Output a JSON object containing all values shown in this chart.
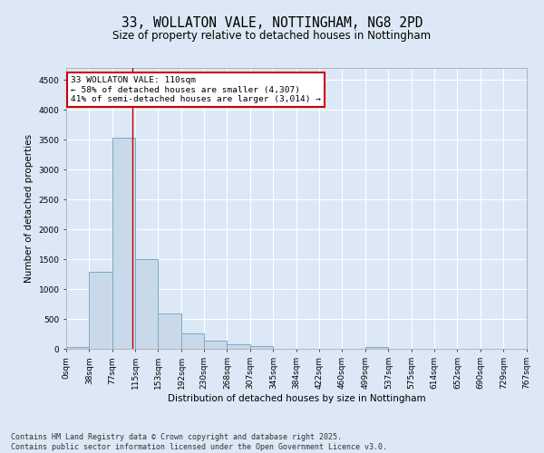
{
  "title_line1": "33, WOLLATON VALE, NOTTINGHAM, NG8 2PD",
  "title_line2": "Size of property relative to detached houses in Nottingham",
  "xlabel": "Distribution of detached houses by size in Nottingham",
  "ylabel": "Number of detached properties",
  "bins": [
    0,
    38,
    77,
    115,
    153,
    192,
    230,
    268,
    307,
    345,
    384,
    422,
    460,
    499,
    537,
    575,
    614,
    652,
    690,
    729,
    767
  ],
  "bar_heights": [
    30,
    1290,
    3540,
    1500,
    600,
    270,
    140,
    80,
    55,
    10,
    0,
    0,
    0,
    30,
    0,
    0,
    0,
    0,
    0,
    0
  ],
  "bar_color": "#c9d9ea",
  "bar_edge_color": "#7aaac8",
  "background_color": "#dce8f5",
  "grid_color": "#ffffff",
  "property_size": 110,
  "property_line_color": "#cc0000",
  "annotation_text": "33 WOLLATON VALE: 110sqm\n← 58% of detached houses are smaller (4,307)\n41% of semi-detached houses are larger (3,014) →",
  "annotation_box_color": "#ffffff",
  "annotation_box_edge_color": "#cc0000",
  "ylim": [
    0,
    4700
  ],
  "yticks": [
    0,
    500,
    1000,
    1500,
    2000,
    2500,
    3000,
    3500,
    4000,
    4500
  ],
  "footer_line1": "Contains HM Land Registry data © Crown copyright and database right 2025.",
  "footer_line2": "Contains public sector information licensed under the Open Government Licence v3.0.",
  "title_fontsize": 10.5,
  "subtitle_fontsize": 8.5,
  "axis_label_fontsize": 7.5,
  "tick_fontsize": 6.5,
  "annotation_fontsize": 6.8,
  "footer_fontsize": 6.0
}
